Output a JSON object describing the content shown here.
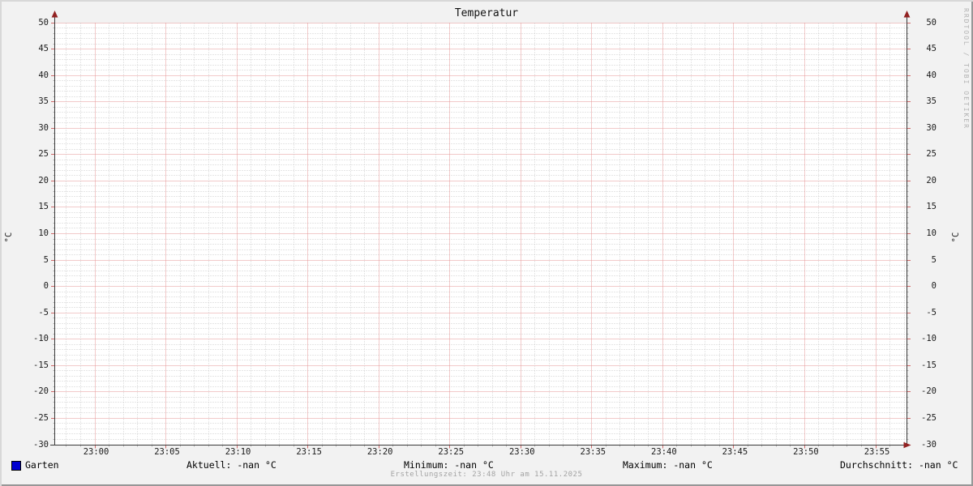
{
  "title": "Temperatur",
  "watermark": "RRDTOOL / TOBI OETIKER",
  "footer": "Erstellungszeit: 23:48 Uhr am 15.11.2025",
  "legend": {
    "series_label": "Garten",
    "series_color": "#0000d0",
    "stats": [
      {
        "label": "Aktuell:",
        "value": "-nan °C"
      },
      {
        "label": "Minimum:",
        "value": "-nan °C"
      },
      {
        "label": "Maximum:",
        "value": "-nan °C"
      },
      {
        "label": "Durchschnitt:",
        "value": "-nan °C"
      }
    ]
  },
  "chart_data": {
    "type": "line",
    "title": "Temperatur",
    "ylabel": "°C",
    "ylabel_right": "°C",
    "ylim": [
      -30,
      50
    ],
    "y_tick_step": 5,
    "y_minor_step": 1,
    "y_ticks": [
      "50",
      "45",
      "40",
      "35",
      "30",
      "25",
      "20",
      "15",
      "10",
      "5",
      "0",
      "-5",
      "-10",
      "-15",
      "-20",
      "-25",
      "-30"
    ],
    "x_ticks": [
      "23:00",
      "23:05",
      "23:10",
      "23:15",
      "23:20",
      "23:25",
      "23:30",
      "23:35",
      "23:40",
      "23:45",
      "23:50",
      "23:55"
    ],
    "x_minor_per_major": 5,
    "grid": true,
    "legend_position": "bottom",
    "series": [
      {
        "name": "Garten",
        "color": "#0000d0",
        "values": []
      }
    ],
    "colors": {
      "background": "#f2f2f2",
      "canvas": "#ffffff",
      "major_grid": "#e59595",
      "minor_grid": "#cccccc",
      "axis": "#3a3a3a",
      "arrow": "#922222",
      "major_tick": "#d06a6a",
      "minor_tick": "#b5b5b5"
    }
  }
}
